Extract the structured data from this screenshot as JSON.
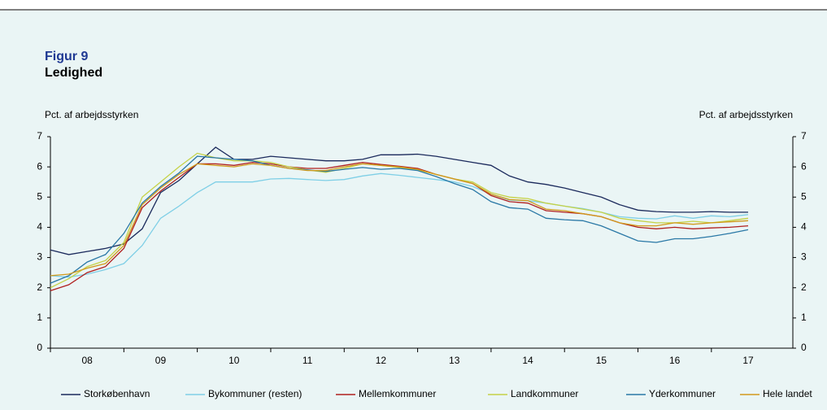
{
  "chart_data": {
    "type": "line",
    "figure_label": "Figur 9",
    "title": "Ledighed",
    "y_label": "Pct. af arbejdsstyrken",
    "y2_label": "Pct. af arbejdsstyrken",
    "categories": [
      null,
      null,
      "08",
      null,
      null,
      null,
      "09",
      null,
      null,
      null,
      "10",
      null,
      null,
      null,
      "11",
      null,
      null,
      null,
      "12",
      null,
      null,
      null,
      "13",
      null,
      null,
      null,
      "14",
      null,
      null,
      null,
      "15",
      null,
      null,
      null,
      "16",
      null,
      null,
      null,
      "17"
    ],
    "ylim": [
      0,
      7
    ],
    "yticks": [
      0,
      1,
      2,
      3,
      4,
      5,
      6,
      7
    ],
    "y2lim": [
      0,
      7
    ],
    "y2ticks": [
      0,
      1,
      2,
      3,
      4,
      5,
      6,
      7
    ],
    "series": [
      {
        "name": "Storkøbenhavn",
        "color": "#1b2a5c",
        "values": [
          3.25,
          3.1,
          3.2,
          3.3,
          3.45,
          3.95,
          5.15,
          5.55,
          6.1,
          6.65,
          6.25,
          6.25,
          6.35,
          6.3,
          6.25,
          6.2,
          6.2,
          6.25,
          6.4,
          6.4,
          6.42,
          6.35,
          6.25,
          6.15,
          6.05,
          5.7,
          5.5,
          5.42,
          5.3,
          5.15,
          5.0,
          4.75,
          4.57,
          4.52,
          4.5,
          4.5,
          4.52,
          4.5,
          4.5
        ]
      },
      {
        "name": "Bykommuner (resten)",
        "color": "#7fcfe6",
        "values": [
          2.4,
          2.35,
          2.45,
          2.6,
          2.8,
          3.4,
          4.3,
          4.7,
          5.15,
          5.5,
          5.5,
          5.5,
          5.6,
          5.62,
          5.58,
          5.55,
          5.58,
          5.7,
          5.78,
          5.72,
          5.65,
          5.58,
          5.5,
          5.35,
          5.1,
          4.9,
          4.88,
          4.8,
          4.7,
          4.62,
          4.5,
          4.35,
          4.3,
          4.28,
          4.38,
          4.3,
          4.38,
          4.35,
          4.42
        ]
      },
      {
        "name": "Mellemkommuner",
        "color": "#b0201f",
        "values": [
          1.9,
          2.1,
          2.5,
          2.7,
          3.3,
          4.65,
          5.2,
          5.65,
          6.1,
          6.1,
          6.05,
          6.15,
          6.1,
          6.0,
          5.95,
          5.95,
          6.05,
          6.15,
          6.08,
          6.02,
          5.95,
          5.75,
          5.6,
          5.45,
          5.05,
          4.85,
          4.8,
          4.55,
          4.5,
          4.45,
          4.35,
          4.15,
          4.0,
          3.95,
          4.0,
          3.95,
          3.98,
          4.0,
          4.05
        ]
      },
      {
        "name": "Landkommuner",
        "color": "#c5d246",
        "values": [
          2.0,
          2.3,
          2.7,
          2.9,
          3.5,
          5.0,
          5.5,
          6.0,
          6.45,
          6.3,
          6.2,
          6.2,
          6.15,
          6.0,
          5.9,
          5.82,
          5.95,
          6.1,
          6.05,
          5.98,
          5.9,
          5.75,
          5.6,
          5.5,
          5.15,
          5.0,
          4.95,
          4.8,
          4.7,
          4.6,
          4.5,
          4.3,
          4.22,
          4.15,
          4.15,
          4.2,
          4.15,
          4.22,
          4.3
        ]
      },
      {
        "name": "Yderkommuner",
        "color": "#2a78a6",
        "values": [
          2.15,
          2.4,
          2.85,
          3.1,
          3.8,
          4.8,
          5.35,
          5.8,
          6.35,
          6.3,
          6.25,
          6.2,
          6.05,
          5.95,
          5.9,
          5.85,
          5.92,
          5.98,
          5.92,
          5.95,
          5.88,
          5.68,
          5.45,
          5.25,
          4.85,
          4.65,
          4.6,
          4.3,
          4.25,
          4.22,
          4.05,
          3.8,
          3.55,
          3.5,
          3.62,
          3.62,
          3.7,
          3.8,
          3.92
        ]
      },
      {
        "name": "Hele landet",
        "color": "#d19a1c",
        "values": [
          2.4,
          2.45,
          2.65,
          2.8,
          3.4,
          4.75,
          5.3,
          5.75,
          6.1,
          6.05,
          6.0,
          6.1,
          6.05,
          5.95,
          5.88,
          5.88,
          6.0,
          6.1,
          6.05,
          6.0,
          5.92,
          5.75,
          5.6,
          5.45,
          5.1,
          4.92,
          4.88,
          4.6,
          4.55,
          4.45,
          4.35,
          4.15,
          4.05,
          4.05,
          4.15,
          4.1,
          4.15,
          4.18,
          4.22
        ]
      }
    ]
  }
}
